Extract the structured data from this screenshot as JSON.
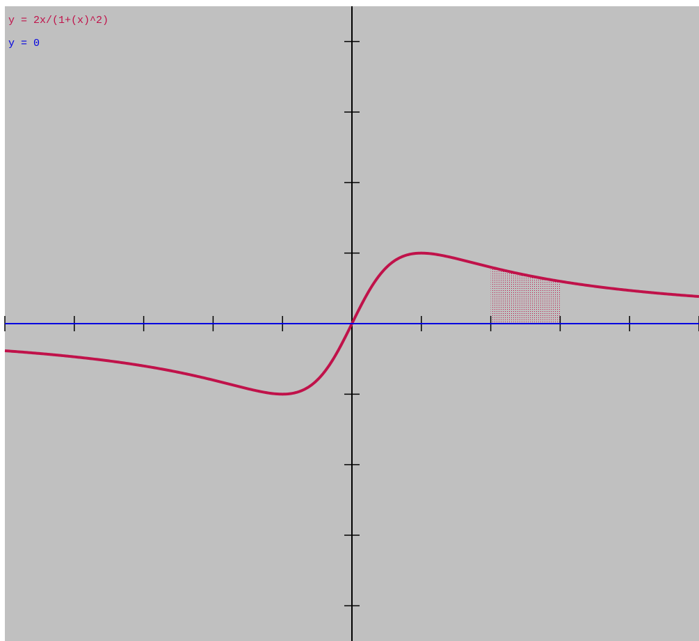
{
  "chart_data": {
    "type": "line",
    "background_color": "#c0c0c0",
    "xlim": [
      -5,
      5
    ],
    "ylim": [
      -4.5,
      4.5
    ],
    "x_ticks": [
      -5,
      -4,
      -3,
      -2,
      -1,
      1,
      2,
      3,
      4,
      5
    ],
    "y_ticks": [
      -4,
      -3,
      -2,
      -1,
      1,
      2,
      3,
      4
    ],
    "tick_labels_shown": false,
    "grid": false,
    "series": [
      {
        "name": "y = 2x/(1+(x)^2)",
        "color": "#c0124a",
        "expression": "2x/(1+x^2)",
        "x": [
          -5,
          -4.5,
          -4,
          -3.5,
          -3,
          -2.5,
          -2,
          -1.5,
          -1.2,
          -1,
          -0.8,
          -0.6,
          -0.4,
          -0.2,
          0,
          0.2,
          0.4,
          0.6,
          0.8,
          1,
          1.2,
          1.5,
          2,
          2.5,
          3,
          3.5,
          4,
          4.5,
          5
        ],
        "y": [
          -0.385,
          -0.42,
          -0.471,
          -0.528,
          -0.6,
          -0.69,
          -0.8,
          -0.923,
          -0.984,
          -1,
          -0.976,
          -0.882,
          -0.69,
          -0.385,
          0,
          0.385,
          0.69,
          0.882,
          0.976,
          1,
          0.984,
          0.923,
          0.8,
          0.69,
          0.6,
          0.528,
          0.471,
          0.42,
          0.385
        ]
      },
      {
        "name": "y = 0",
        "color": "#0000e0",
        "expression": "0",
        "x": [
          -5,
          5
        ],
        "y": [
          0,
          0
        ]
      }
    ],
    "shaded_region": {
      "series": "y = 2x/(1+(x)^2)",
      "x_from": 2,
      "x_to": 3,
      "color": "#c0124a"
    },
    "legend_placement": "top-left"
  }
}
